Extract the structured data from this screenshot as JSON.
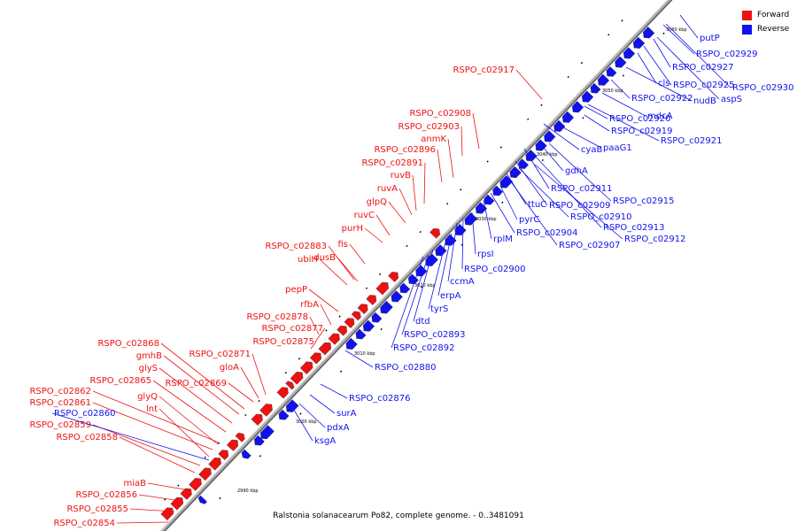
{
  "title": "Ralstonia solanacearum Po82, complete genome. - 0..3481091",
  "legend": [
    {
      "label": "Forward",
      "color": "#ee1111"
    },
    {
      "label": "Reverse",
      "color": "#1111ee"
    }
  ],
  "ticks": [
    "2990 kbp",
    "3000 kbp",
    "3010 kbp",
    "3020 kbp",
    "3030 kbp",
    "3040 kbp",
    "3050 kbp",
    "3060 kbp"
  ],
  "forward_labels": [
    "RSPO_c02917",
    "RSPO_c02908",
    "RSPO_c02903",
    "anmK",
    "RSPO_c02896",
    "RSPO_c02891",
    "ruvB",
    "ruvA",
    "glpQ",
    "ruvC",
    "purH",
    "fis",
    "RSPO_c02883",
    "ubiH",
    "dusB",
    "pepP",
    "rfbA",
    "RSPO_c02878",
    "RSPO_c02877",
    "RSPO_c02875",
    "RSPO_c02868",
    "RSPO_c02871",
    "gmhB",
    "gloA",
    "glyS",
    "RSPO_c02869",
    "RSPO_c02865",
    "RSPO_c02862",
    "glyQ",
    "RSPO_c02861",
    "lnt",
    "RSPO_c02859",
    "RSPO_c02858",
    "miaB",
    "RSPO_c02856",
    "RSPO_c02855",
    "RSPO_c02854"
  ],
  "reverse_labels": [
    "putP",
    "RSPO_c02929",
    "RSPO_c02927",
    "cls",
    "RSPO_c02925",
    "RSPO_c02930",
    "nudB",
    "aspS",
    "RSPO_c02922",
    "mdcA",
    "RSPO_c02920",
    "RSPO_c02919",
    "RSPO_c02921",
    "paaG1",
    "cyaB",
    "gdhA",
    "RSPO_c02911",
    "RSPO_c02915",
    "ttuC",
    "RSPO_c02909",
    "RSPO_c02910",
    "pyrC",
    "RSPO_c02913",
    "RSPO_c02912",
    "RSPO_c02904",
    "RSPO_c02907",
    "rplM",
    "rpsI",
    "RSPO_c02900",
    "ccmA",
    "erpA",
    "tyrS",
    "dtd",
    "RSPO_c02893",
    "RSPO_c02892",
    "RSPO_c02880",
    "RSPO_c02876",
    "surA",
    "pdxA",
    "ksgA",
    "RSPO_c02860"
  ]
}
